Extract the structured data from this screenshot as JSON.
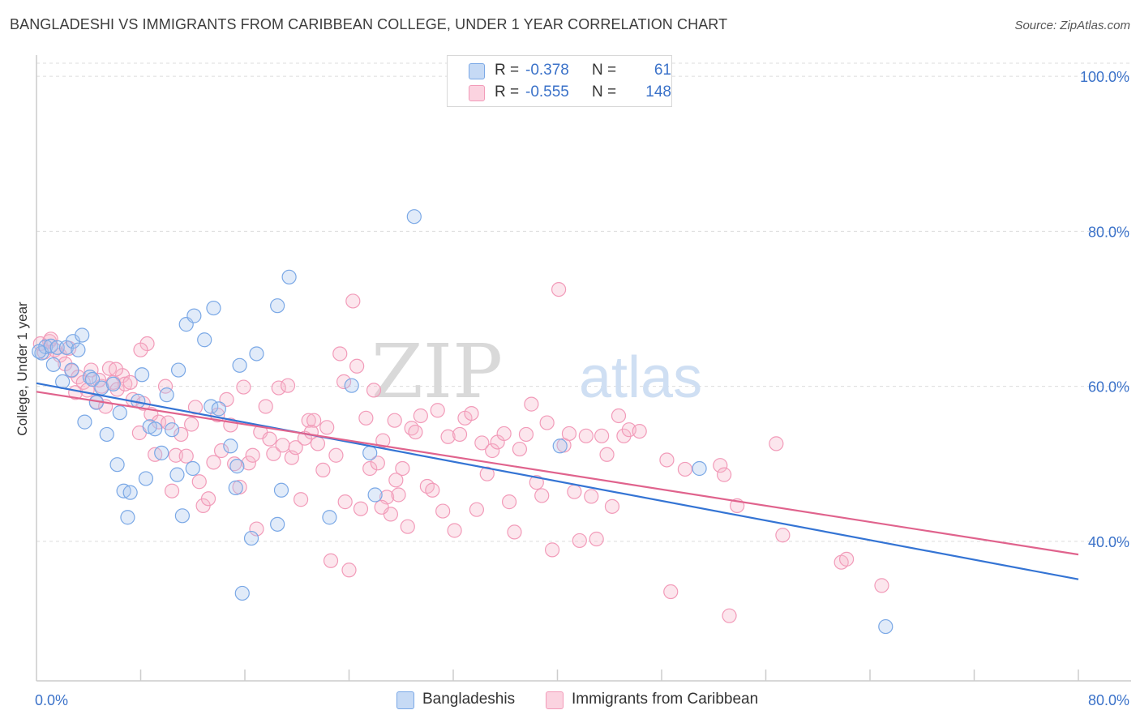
{
  "title": "BANGLADESHI VS IMMIGRANTS FROM CARIBBEAN COLLEGE, UNDER 1 YEAR CORRELATION CHART",
  "source": "Source: ZipAtlas.com",
  "watermark": {
    "zip": "ZIP",
    "atlas": "atlas"
  },
  "legend": {
    "series1": {
      "r_label": "R =",
      "r_value": "-0.378",
      "n_label": "N =",
      "n_value": "61",
      "color": "#7aa8e6"
    },
    "series2": {
      "r_label": "R =",
      "r_value": "-0.555",
      "n_label": "N =",
      "n_value": "148",
      "color": "#f29bb9"
    }
  },
  "bottom_legend": {
    "series1": "Bangladeshis",
    "series2": "Immigrants from Caribbean"
  },
  "chart_data": {
    "type": "scatter",
    "title": "BANGLADESHI VS IMMIGRANTS FROM CARIBBEAN COLLEGE, UNDER 1 YEAR CORRELATION CHART",
    "xlabel": "",
    "ylabel": "College, Under 1 year",
    "xlim": [
      0,
      80
    ],
    "ylim": [
      22,
      102
    ],
    "x_tick_labels": [
      "0.0%",
      "80.0%"
    ],
    "y_ticks": [
      40,
      60,
      80,
      100
    ],
    "y_tick_labels": [
      "40.0%",
      "60.0%",
      "80.0%",
      "100.0%"
    ],
    "grid": "horizontal dashed",
    "legend_placement": "top-center",
    "series": [
      {
        "name": "Bangladeshis",
        "color": "#7aa8e6",
        "line_color": "#3474d4",
        "r": -0.378,
        "n": 61,
        "trend": {
          "x": [
            0,
            80
          ],
          "y": [
            60.4,
            35.1
          ]
        },
        "points": [
          [
            0.4,
            64.3
          ],
          [
            0.7,
            65.1
          ],
          [
            1.1,
            65.2
          ],
          [
            1.3,
            62.8
          ],
          [
            1.6,
            65.0
          ],
          [
            2.0,
            60.6
          ],
          [
            2.3,
            65.0
          ],
          [
            2.7,
            62.1
          ],
          [
            2.8,
            65.8
          ],
          [
            3.2,
            64.7
          ],
          [
            3.5,
            66.6
          ],
          [
            3.7,
            55.4
          ],
          [
            4.1,
            61.2
          ],
          [
            4.3,
            60.9
          ],
          [
            4.6,
            57.9
          ],
          [
            5.0,
            59.8
          ],
          [
            5.4,
            53.8
          ],
          [
            5.9,
            60.3
          ],
          [
            6.2,
            49.9
          ],
          [
            6.4,
            56.6
          ],
          [
            6.7,
            46.5
          ],
          [
            7.0,
            43.1
          ],
          [
            7.2,
            46.3
          ],
          [
            7.8,
            58.1
          ],
          [
            8.1,
            61.5
          ],
          [
            8.4,
            48.1
          ],
          [
            8.7,
            54.8
          ],
          [
            9.1,
            54.5
          ],
          [
            9.6,
            51.4
          ],
          [
            10.0,
            58.9
          ],
          [
            10.4,
            54.4
          ],
          [
            10.8,
            48.6
          ],
          [
            10.9,
            62.1
          ],
          [
            11.2,
            43.3
          ],
          [
            11.5,
            68.0
          ],
          [
            12.0,
            49.4
          ],
          [
            12.1,
            69.1
          ],
          [
            12.9,
            66.0
          ],
          [
            13.4,
            57.4
          ],
          [
            13.6,
            70.1
          ],
          [
            14.0,
            57.1
          ],
          [
            14.9,
            52.3
          ],
          [
            15.3,
            46.9
          ],
          [
            15.4,
            49.7
          ],
          [
            15.6,
            62.7
          ],
          [
            15.8,
            33.3
          ],
          [
            16.5,
            40.4
          ],
          [
            16.9,
            64.2
          ],
          [
            18.5,
            42.2
          ],
          [
            18.5,
            70.4
          ],
          [
            18.8,
            46.6
          ],
          [
            19.4,
            74.1
          ],
          [
            22.5,
            43.1
          ],
          [
            24.2,
            60.1
          ],
          [
            25.6,
            51.4
          ],
          [
            26.0,
            46.0
          ],
          [
            29.0,
            81.9
          ],
          [
            40.2,
            52.3
          ],
          [
            50.9,
            49.4
          ],
          [
            65.2,
            29.0
          ],
          [
            0.2,
            64.5
          ]
        ]
      },
      {
        "name": "Immigrants from Caribbean",
        "color": "#f29bb9",
        "line_color": "#e0638d",
        "r": -0.555,
        "n": 148,
        "trend": {
          "x": [
            0,
            80
          ],
          "y": [
            59.3,
            38.3
          ]
        },
        "points": [
          [
            0.3,
            65.5
          ],
          [
            0.6,
            64.4
          ],
          [
            1.0,
            65.8
          ],
          [
            1.4,
            64.7
          ],
          [
            1.8,
            64.0
          ],
          [
            2.2,
            62.9
          ],
          [
            2.7,
            62.0
          ],
          [
            3.0,
            59.2
          ],
          [
            3.2,
            61.2
          ],
          [
            3.6,
            60.5
          ],
          [
            3.9,
            59.5
          ],
          [
            4.2,
            62.1
          ],
          [
            4.6,
            58.0
          ],
          [
            5.0,
            60.0
          ],
          [
            5.3,
            57.4
          ],
          [
            5.6,
            62.3
          ],
          [
            5.9,
            60.5
          ],
          [
            6.2,
            59.6
          ],
          [
            6.6,
            61.4
          ],
          [
            6.8,
            60.3
          ],
          [
            7.2,
            60.5
          ],
          [
            7.4,
            58.3
          ],
          [
            7.9,
            54.0
          ],
          [
            8.2,
            57.8
          ],
          [
            8.5,
            65.5
          ],
          [
            8.8,
            56.4
          ],
          [
            9.1,
            51.2
          ],
          [
            9.4,
            55.4
          ],
          [
            9.9,
            60.0
          ],
          [
            10.1,
            55.3
          ],
          [
            10.4,
            46.5
          ],
          [
            10.7,
            51.1
          ],
          [
            11.1,
            53.8
          ],
          [
            11.5,
            51.0
          ],
          [
            11.9,
            55.1
          ],
          [
            12.2,
            57.3
          ],
          [
            12.5,
            47.7
          ],
          [
            12.8,
            44.6
          ],
          [
            13.2,
            45.5
          ],
          [
            13.6,
            50.2
          ],
          [
            13.9,
            56.3
          ],
          [
            14.2,
            51.7
          ],
          [
            14.6,
            58.3
          ],
          [
            14.9,
            55.0
          ],
          [
            15.2,
            50.0
          ],
          [
            15.6,
            47.0
          ],
          [
            15.9,
            59.9
          ],
          [
            16.3,
            50.1
          ],
          [
            16.6,
            51.1
          ],
          [
            16.9,
            41.6
          ],
          [
            17.2,
            54.1
          ],
          [
            17.6,
            57.4
          ],
          [
            17.9,
            53.2
          ],
          [
            18.2,
            51.3
          ],
          [
            18.6,
            59.8
          ],
          [
            18.9,
            52.4
          ],
          [
            19.3,
            60.1
          ],
          [
            19.6,
            50.8
          ],
          [
            19.9,
            52.1
          ],
          [
            20.3,
            45.4
          ],
          [
            20.6,
            53.3
          ],
          [
            20.9,
            55.6
          ],
          [
            21.3,
            55.6
          ],
          [
            21.6,
            52.6
          ],
          [
            22.0,
            49.2
          ],
          [
            22.3,
            54.7
          ],
          [
            22.6,
            37.5
          ],
          [
            23.0,
            51.1
          ],
          [
            23.3,
            64.2
          ],
          [
            23.6,
            60.6
          ],
          [
            24.0,
            36.3
          ],
          [
            24.3,
            71.0
          ],
          [
            24.6,
            62.6
          ],
          [
            24.9,
            44.2
          ],
          [
            25.3,
            55.9
          ],
          [
            25.6,
            49.4
          ],
          [
            25.9,
            59.5
          ],
          [
            26.2,
            50.1
          ],
          [
            26.6,
            53.0
          ],
          [
            26.9,
            45.7
          ],
          [
            27.2,
            43.5
          ],
          [
            27.5,
            55.6
          ],
          [
            27.8,
            46.0
          ],
          [
            28.1,
            49.4
          ],
          [
            28.5,
            41.9
          ],
          [
            28.8,
            54.6
          ],
          [
            29.1,
            54.1
          ],
          [
            29.5,
            56.2
          ],
          [
            30.0,
            47.1
          ],
          [
            30.4,
            46.6
          ],
          [
            30.8,
            56.9
          ],
          [
            31.2,
            43.9
          ],
          [
            31.6,
            53.5
          ],
          [
            32.1,
            41.4
          ],
          [
            32.5,
            53.8
          ],
          [
            32.9,
            55.9
          ],
          [
            33.4,
            56.5
          ],
          [
            33.8,
            44.1
          ],
          [
            34.2,
            52.7
          ],
          [
            34.6,
            48.7
          ],
          [
            35.0,
            51.7
          ],
          [
            35.4,
            52.8
          ],
          [
            35.9,
            53.9
          ],
          [
            36.3,
            45.1
          ],
          [
            36.7,
            41.2
          ],
          [
            37.1,
            51.9
          ],
          [
            37.6,
            53.8
          ],
          [
            38.0,
            57.7
          ],
          [
            38.4,
            47.6
          ],
          [
            38.8,
            45.9
          ],
          [
            39.2,
            55.3
          ],
          [
            39.6,
            38.9
          ],
          [
            40.1,
            72.5
          ],
          [
            40.5,
            52.4
          ],
          [
            40.9,
            53.9
          ],
          [
            41.3,
            46.4
          ],
          [
            41.7,
            40.1
          ],
          [
            42.2,
            53.6
          ],
          [
            42.6,
            45.8
          ],
          [
            43.0,
            40.3
          ],
          [
            43.4,
            53.6
          ],
          [
            43.8,
            51.2
          ],
          [
            44.2,
            44.5
          ],
          [
            44.7,
            56.2
          ],
          [
            45.1,
            53.6
          ],
          [
            45.5,
            54.4
          ],
          [
            46.3,
            54.2
          ],
          [
            48.4,
            50.5
          ],
          [
            48.7,
            33.5
          ],
          [
            49.8,
            49.3
          ],
          [
            52.5,
            49.8
          ],
          [
            52.8,
            48.6
          ],
          [
            53.2,
            30.4
          ],
          [
            53.8,
            44.6
          ],
          [
            56.8,
            52.6
          ],
          [
            57.3,
            40.8
          ],
          [
            61.8,
            37.3
          ],
          [
            62.2,
            37.7
          ],
          [
            64.9,
            34.3
          ],
          [
            1.1,
            66.1
          ],
          [
            2.5,
            64.9
          ],
          [
            4.8,
            60.8
          ],
          [
            6.1,
            62.2
          ],
          [
            8.0,
            64.7
          ],
          [
            21.1,
            54.1
          ],
          [
            23.7,
            45.1
          ],
          [
            26.5,
            44.4
          ],
          [
            27.6,
            47.9
          ]
        ]
      }
    ]
  }
}
